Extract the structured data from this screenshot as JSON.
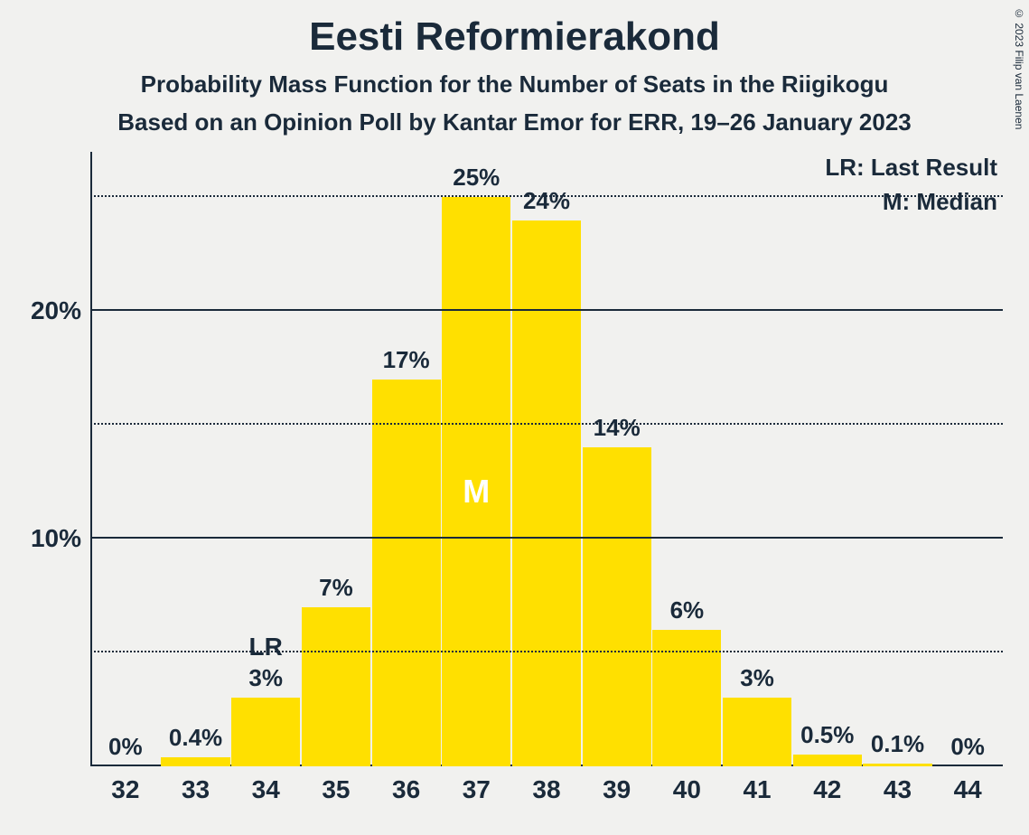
{
  "title": "Eesti Reformierakond",
  "subtitle1": "Probability Mass Function for the Number of Seats in the Riigikogu",
  "subtitle2": "Based on an Opinion Poll by Kantar Emor for ERR, 19–26 January 2023",
  "copyright": "© 2023 Filip van Laenen",
  "legend_lr": "LR: Last Result",
  "legend_m": "M: Median",
  "chart": {
    "type": "bar",
    "bar_color": "#ffe000",
    "background_color": "#f1f1ef",
    "text_color": "#1a2a3a",
    "median_text_color": "#ffffff",
    "ylim_max": 27,
    "y_major_ticks": [
      10,
      20
    ],
    "y_minor_ticks": [
      5,
      15,
      25
    ],
    "y_major_labels": [
      "10%",
      "20%"
    ],
    "title_fontsize": 44,
    "subtitle_fontsize": 26,
    "label_fontsize": 26,
    "xlabel_fontsize": 28,
    "median_category": "37",
    "lr_category": "34",
    "lr_mark": "LR",
    "median_mark": "M",
    "categories": [
      "32",
      "33",
      "34",
      "35",
      "36",
      "37",
      "38",
      "39",
      "40",
      "41",
      "42",
      "43",
      "44"
    ],
    "values": [
      0,
      0.4,
      3,
      7,
      17,
      25,
      24,
      14,
      6,
      3,
      0.5,
      0.1,
      0
    ],
    "bar_labels": [
      "0%",
      "0.4%",
      "3%",
      "7%",
      "17%",
      "25%",
      "24%",
      "14%",
      "6%",
      "3%",
      "0.5%",
      "0.1%",
      "0%"
    ]
  }
}
